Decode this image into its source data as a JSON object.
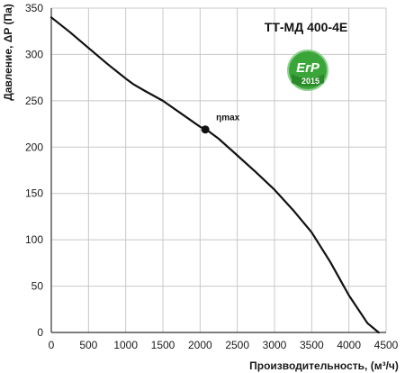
{
  "chart_data": {
    "type": "line",
    "title": "ТТ-МД 400-4Е",
    "xlabel": "Производительность, (м³/ч)",
    "ylabel": "Давление, ΔP (Па)",
    "xlim": [
      0,
      4500
    ],
    "ylim": [
      0,
      350
    ],
    "xticks": [
      0,
      500,
      1000,
      1500,
      2000,
      2500,
      3000,
      3500,
      4000,
      4500
    ],
    "yticks": [
      0,
      50,
      100,
      150,
      200,
      250,
      300,
      350
    ],
    "grid": true,
    "series": [
      {
        "x": [
          0,
          250,
          500,
          750,
          1000,
          1100,
          1250,
          1500,
          1750,
          2000,
          2100,
          2250,
          2500,
          2750,
          3000,
          3250,
          3500,
          3750,
          4000,
          4250,
          4400
        ],
        "y": [
          340,
          324,
          307,
          290,
          274,
          268,
          261,
          250,
          236,
          222,
          218,
          209,
          191,
          173,
          154,
          132,
          108,
          76,
          40,
          10,
          0
        ],
        "color": "#111111"
      }
    ],
    "annotations": [
      {
        "label": "ηmax",
        "x": 2070,
        "y": 219
      }
    ]
  },
  "badge": {
    "top_text": "ErP",
    "bottom_text": "2015",
    "color": "#3aa63a"
  }
}
